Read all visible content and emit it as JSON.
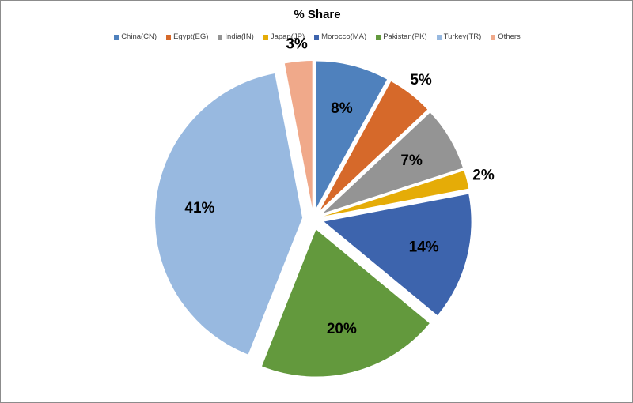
{
  "chart_data": {
    "type": "pie",
    "title": "% Share",
    "legend_position": "top",
    "exploded": true,
    "categories": [
      "China(CN)",
      "Egypt(EG)",
      "India(IN)",
      "Japan(JP)",
      "Morocco(MA)",
      "Pakistan(PK)",
      "Turkey(TR)",
      "Others"
    ],
    "values": [
      8,
      5,
      7,
      2,
      14,
      20,
      41,
      3
    ],
    "labels": [
      "8%",
      "5%",
      "7%",
      "2%",
      "14%",
      "20%",
      "41%",
      "3%"
    ],
    "colors": [
      "#4f81bd",
      "#d6692a",
      "#949494",
      "#e5ac07",
      "#3d64ad",
      "#63993d",
      "#98b9e0",
      "#f0a98a"
    ]
  }
}
